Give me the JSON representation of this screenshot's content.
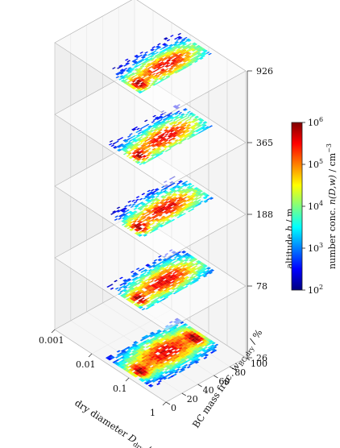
{
  "chart_data": {
    "type": "heatmap",
    "projection": "3d-stacked",
    "x_axis": {
      "label": "dry diameter D_dry / μm",
      "label_parts": [
        "dry diameter ",
        "D",
        "dry",
        " / μm"
      ],
      "ticks": [
        "0.001",
        "0.01",
        "0.1",
        "1"
      ],
      "scale": "log",
      "range": [
        0.001,
        1
      ]
    },
    "y_axis": {
      "label": "BC mass frac. w_BC,dry / %",
      "label_parts": [
        "BC mass frac. ",
        "w",
        "BC,dry",
        " / %"
      ],
      "ticks": [
        "0",
        "20",
        "40",
        "60",
        "80",
        "100"
      ],
      "range": [
        0,
        100
      ]
    },
    "z_axis": {
      "label": "altitude h / m",
      "label_parts": [
        "altitude ",
        "h",
        " / m"
      ],
      "ticks": [
        "26",
        "78",
        "188",
        "365",
        "926"
      ]
    },
    "colorbar": {
      "label": "number conc. n(D,w) / cm⁻³",
      "label_parts": [
        "number conc. ",
        "n(D,w)",
        " / cm",
        "−3"
      ],
      "scale": "log",
      "range": [
        100,
        1000000
      ],
      "colormap": "jet",
      "ticks": [
        {
          "base": "10",
          "exp": "2"
        },
        {
          "base": "10",
          "exp": "3"
        },
        {
          "base": "10",
          "exp": "4"
        },
        {
          "base": "10",
          "exp": "5"
        },
        {
          "base": "10",
          "exp": "6"
        }
      ],
      "colors": [
        "#00007f",
        "#0000ff",
        "#007fff",
        "#00ffff",
        "#7fff7f",
        "#ffff00",
        "#ff7f00",
        "#ff0000",
        "#7f0000"
      ]
    },
    "layers": [
      {
        "altitude": "26",
        "spread": 1.0,
        "fill": 0.92
      },
      {
        "altitude": "78",
        "spread": 0.82,
        "fill": 0.78
      },
      {
        "altitude": "188",
        "spread": 0.78,
        "fill": 0.72
      },
      {
        "altitude": "365",
        "spread": 0.76,
        "fill": 0.72
      },
      {
        "altitude": "926",
        "spread": 0.74,
        "fill": 0.76
      }
    ],
    "grid": true
  }
}
